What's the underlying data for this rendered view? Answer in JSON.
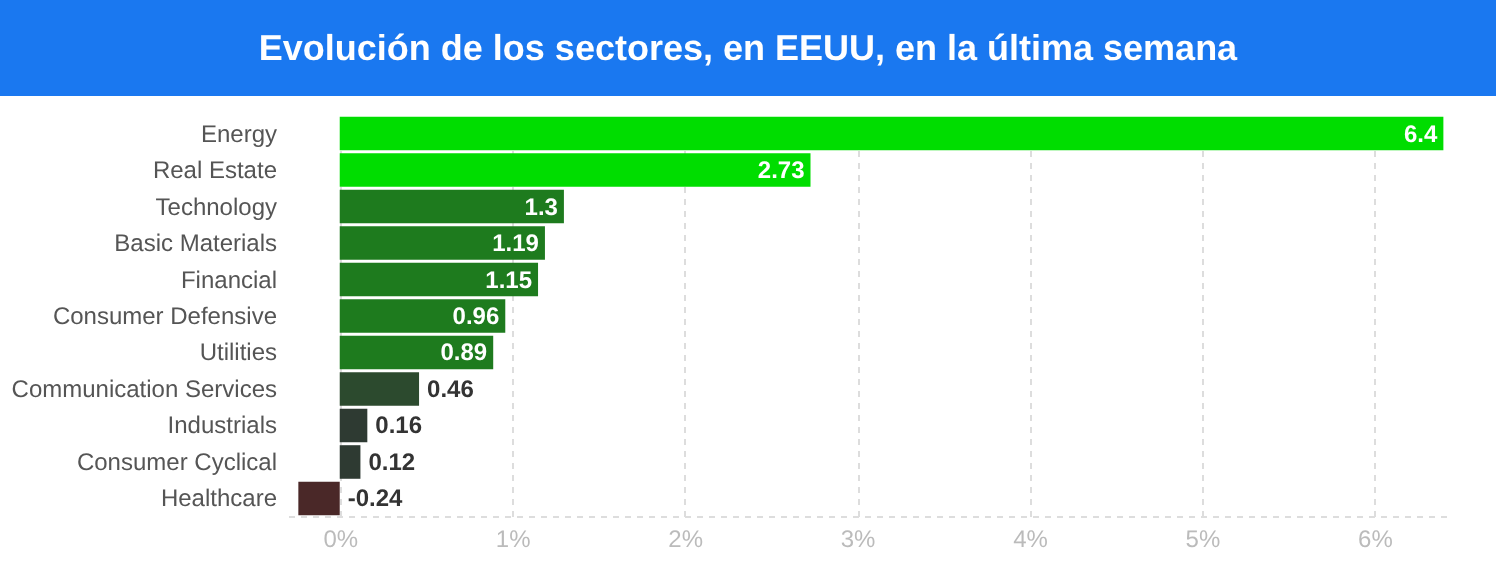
{
  "chart_data": {
    "type": "bar",
    "orientation": "horizontal",
    "title": "Evolución de los sectores, en EEUU, en la última semana",
    "categories": [
      "Energy",
      "Real Estate",
      "Technology",
      "Basic Materials",
      "Financial",
      "Consumer Defensive",
      "Utilities",
      "Communication Services",
      "Industrials",
      "Consumer Cyclical",
      "Healthcare"
    ],
    "values": [
      6.4,
      2.73,
      1.3,
      1.19,
      1.15,
      0.96,
      0.89,
      0.46,
      0.16,
      0.12,
      -0.24
    ],
    "colors": [
      "#00dd00",
      "#00dd00",
      "#1e7b1e",
      "#1e7b1e",
      "#1e7b1e",
      "#1e7b1e",
      "#1e7b1e",
      "#2c4a2e",
      "#2e3a32",
      "#2e3a32",
      "#4a2828"
    ],
    "xlim": [
      -0.3,
      6.45
    ],
    "xticks": [
      {
        "value": 0,
        "label": "0%"
      },
      {
        "value": 1,
        "label": "1%"
      },
      {
        "value": 2,
        "label": "2%"
      },
      {
        "value": 3,
        "label": "3%"
      },
      {
        "value": 4,
        "label": "4%"
      },
      {
        "value": 5,
        "label": "5%"
      },
      {
        "value": 6,
        "label": "6%"
      }
    ],
    "grid": "x",
    "data_labels": true
  }
}
